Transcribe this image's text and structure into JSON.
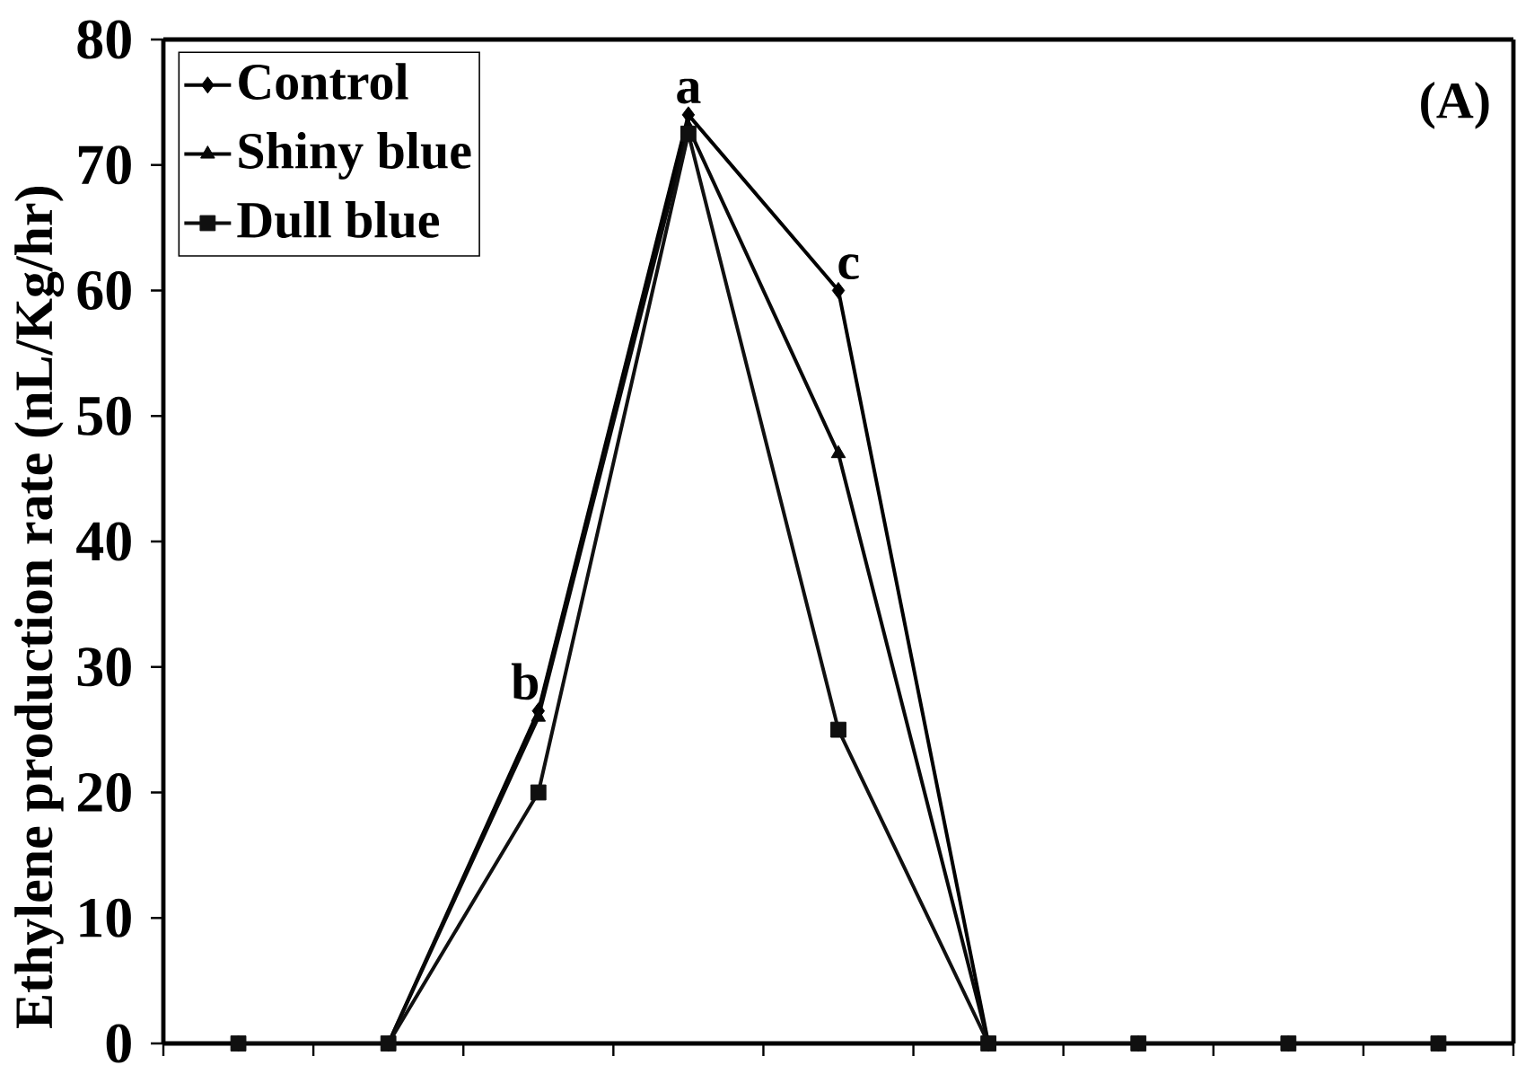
{
  "chart_data": {
    "type": "line",
    "ylabel": "Ethylene production rate (nL/Kg/hr)",
    "categories": [
      null,
      null,
      null,
      null,
      null,
      null,
      null,
      null,
      null
    ],
    "series": [
      {
        "name": "Dull blue",
        "color": "#101010",
        "marker": "square",
        "values": [
          0,
          0,
          20,
          72.5,
          25,
          0,
          0,
          0,
          0
        ]
      },
      {
        "name": "Shiny blue",
        "color": "#080808",
        "marker": "triangle",
        "values": [
          0,
          0,
          26,
          73,
          47,
          0,
          0,
          0,
          0
        ]
      },
      {
        "name": "Control",
        "color": "#000000",
        "marker": "diamond",
        "values": [
          0,
          0,
          26.5,
          74,
          60,
          0,
          0,
          0,
          0
        ]
      }
    ],
    "ylim": [
      0,
      80
    ],
    "yticks": [
      0,
      10,
      20,
      30,
      40,
      50,
      60,
      70,
      80
    ],
    "tick_labels": "y",
    "legend": "top left",
    "annotations": [
      {
        "text": "a",
        "y": 74
      },
      {
        "text": "b",
        "y": 26.5
      },
      {
        "text": "c",
        "y": 60
      },
      "(A)"
    ]
  }
}
